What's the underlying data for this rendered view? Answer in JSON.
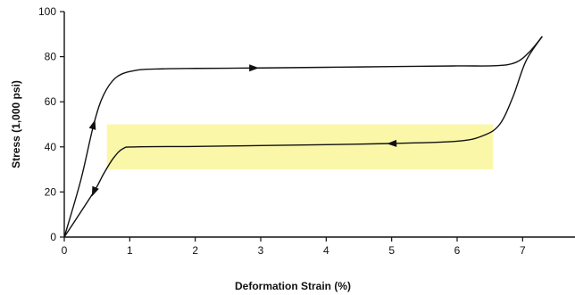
{
  "chart_data": {
    "type": "line",
    "title": "",
    "xlabel": "Deformation Strain (%)",
    "ylabel": "Stress (1,000 psi)",
    "xlim": [
      0,
      7.8
    ],
    "ylim": [
      0,
      100
    ],
    "x_ticks": [
      "0",
      "1",
      "2",
      "3",
      "4",
      "5",
      "6",
      "7"
    ],
    "y_ticks": [
      "0",
      "20",
      "40",
      "60",
      "80",
      "100"
    ],
    "grid": false,
    "colors": {
      "line": "#111111",
      "highlight": "#fbf7a9",
      "axis": "#111111"
    },
    "highlight_band": {
      "x": [
        0.65,
        6.55
      ],
      "y": [
        30,
        50
      ]
    },
    "series": [
      {
        "segment": "loading",
        "points": [
          [
            0,
            0
          ],
          [
            0.25,
            25
          ],
          [
            0.45,
            50
          ],
          [
            0.6,
            63
          ],
          [
            0.8,
            71
          ],
          [
            1.1,
            74
          ],
          [
            1.5,
            74.6
          ],
          [
            2.0,
            74.8
          ],
          [
            3.0,
            75
          ],
          [
            4.0,
            75.3
          ],
          [
            5.0,
            75.6
          ],
          [
            6.0,
            75.9
          ],
          [
            6.6,
            76
          ],
          [
            6.9,
            77.5
          ],
          [
            7.1,
            82
          ],
          [
            7.3,
            89
          ]
        ]
      },
      {
        "segment": "unloading",
        "points": [
          [
            7.3,
            89
          ],
          [
            7.05,
            78
          ],
          [
            6.85,
            62
          ],
          [
            6.65,
            50
          ],
          [
            6.4,
            45
          ],
          [
            6.0,
            42.5
          ],
          [
            5.0,
            41.5
          ],
          [
            4.0,
            41
          ],
          [
            3.0,
            40.6
          ],
          [
            2.0,
            40.2
          ],
          [
            1.1,
            40
          ],
          [
            0.9,
            39.3
          ],
          [
            0.75,
            35
          ],
          [
            0.6,
            28
          ],
          [
            0.45,
            20
          ],
          [
            0,
            0
          ]
        ]
      }
    ],
    "arrows": [
      {
        "at": [
          0.45,
          50
        ],
        "toward": [
          0.55,
          60
        ]
      },
      {
        "at": [
          2.9,
          75
        ],
        "toward": [
          3.1,
          75
        ]
      },
      {
        "at": [
          5.0,
          41.5
        ],
        "toward": [
          4.8,
          41.3
        ]
      },
      {
        "at": [
          0.45,
          20
        ],
        "toward": [
          0.35,
          13
        ]
      }
    ]
  }
}
